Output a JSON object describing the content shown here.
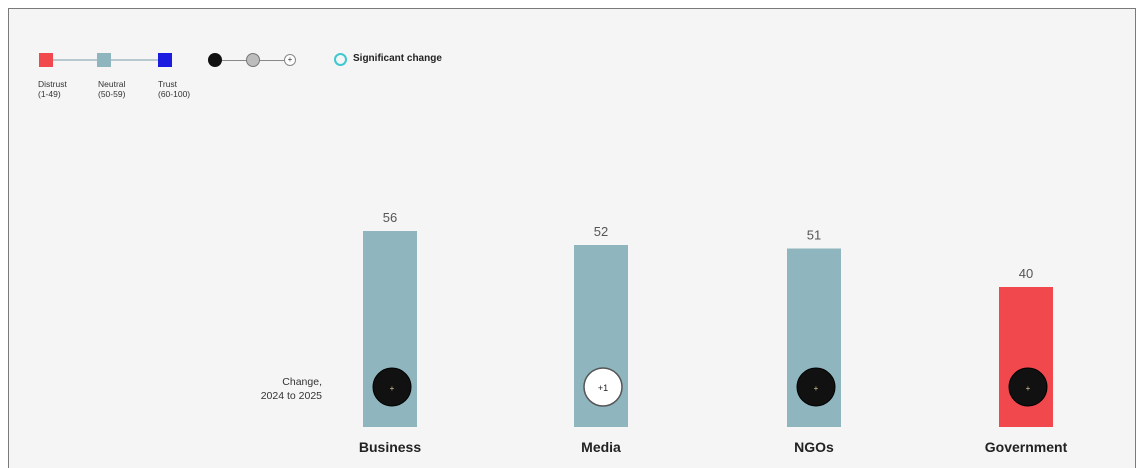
{
  "legend": {
    "items": [
      {
        "label_line1": "Distrust",
        "label_line2": "(1-49)",
        "color": "#f0484d"
      },
      {
        "label_line1": "Neutral",
        "label_line2": "(50-59)",
        "color": "#8fb6bf"
      },
      {
        "label_line1": "Trust",
        "label_line2": "(60-100)",
        "color": "#1b1ce0"
      }
    ],
    "change_marker_plus": "+",
    "significant_label": "Significant change"
  },
  "change_label_line1": "Change,",
  "change_label_line2": "2024 to 2025",
  "colors": {
    "distrust": "#f0484d",
    "neutral": "#8fb6bf",
    "trust": "#1b1ce0",
    "marker_dark": "#111111",
    "marker_light": "#ffffff",
    "marker_highlight": "#3ec9d0"
  },
  "chart_data": {
    "type": "bar",
    "categories": [
      "Business",
      "Media",
      "NGOs",
      "Government"
    ],
    "values": [
      56,
      52,
      51,
      40
    ],
    "value_labels": [
      "56",
      "52",
      "51",
      "40"
    ],
    "bar_colors": [
      "#8fb6bf",
      "#8fb6bf",
      "#8fb6bf",
      "#f0484d"
    ],
    "change_markers": [
      {
        "text": "+",
        "style": "dark"
      },
      {
        "text": "+1",
        "style": "light"
      },
      {
        "text": "+",
        "style": "dark"
      },
      {
        "text": "+",
        "style": "dark"
      }
    ],
    "ylim": [
      0,
      100
    ],
    "title": "",
    "xlabel": "",
    "ylabel": ""
  }
}
